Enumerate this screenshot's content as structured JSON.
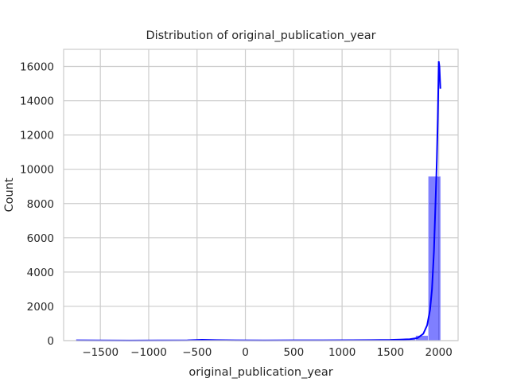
{
  "chart_data": {
    "type": "bar",
    "title": "Distribution of original_publication_year",
    "xlabel": "original_publication_year",
    "ylabel": "Count",
    "xlim": [
      -1880,
      2200
    ],
    "ylim": [
      0,
      17000
    ],
    "grid": true,
    "bar_color": "#0000ff",
    "bar_opacity": 0.5,
    "kde_color": "#0000ff",
    "x_ticks": [
      {
        "value": -1500,
        "label": "−1500"
      },
      {
        "value": -1000,
        "label": "−1000"
      },
      {
        "value": -500,
        "label": "−500"
      },
      {
        "value": 0,
        "label": "0"
      },
      {
        "value": 500,
        "label": "500"
      },
      {
        "value": 1000,
        "label": "1000"
      },
      {
        "value": 1500,
        "label": "1500"
      },
      {
        "value": 2000,
        "label": "2000"
      }
    ],
    "y_ticks": [
      {
        "value": 0,
        "label": "0"
      },
      {
        "value": 2000,
        "label": "2000"
      },
      {
        "value": 4000,
        "label": "4000"
      },
      {
        "value": 6000,
        "label": "6000"
      },
      {
        "value": 8000,
        "label": "8000"
      },
      {
        "value": 10000,
        "label": "10000"
      },
      {
        "value": 12000,
        "label": "12000"
      },
      {
        "value": 14000,
        "label": "14000"
      },
      {
        "value": 16000,
        "label": "16000"
      }
    ],
    "bins": [
      {
        "x0": -1750,
        "x1": -1620,
        "count": 5
      },
      {
        "x0": -1620,
        "x1": -1490,
        "count": 3
      },
      {
        "x0": -1490,
        "x1": -1360,
        "count": 2
      },
      {
        "x0": -1360,
        "x1": -1230,
        "count": 1
      },
      {
        "x0": -1230,
        "x1": -1100,
        "count": 2
      },
      {
        "x0": -1100,
        "x1": -970,
        "count": 2
      },
      {
        "x0": -970,
        "x1": -840,
        "count": 3
      },
      {
        "x0": -840,
        "x1": -710,
        "count": 5
      },
      {
        "x0": -710,
        "x1": -580,
        "count": 8
      },
      {
        "x0": -580,
        "x1": -450,
        "count": 12
      },
      {
        "x0": -450,
        "x1": -320,
        "count": 25
      },
      {
        "x0": -320,
        "x1": -190,
        "count": 10
      },
      {
        "x0": -190,
        "x1": -60,
        "count": 6
      },
      {
        "x0": -60,
        "x1": 70,
        "count": 4
      },
      {
        "x0": 70,
        "x1": 200,
        "count": 5
      },
      {
        "x0": 200,
        "x1": 330,
        "count": 4
      },
      {
        "x0": 330,
        "x1": 460,
        "count": 5
      },
      {
        "x0": 460,
        "x1": 590,
        "count": 6
      },
      {
        "x0": 590,
        "x1": 720,
        "count": 5
      },
      {
        "x0": 720,
        "x1": 850,
        "count": 6
      },
      {
        "x0": 850,
        "x1": 980,
        "count": 8
      },
      {
        "x0": 980,
        "x1": 1110,
        "count": 10
      },
      {
        "x0": 1110,
        "x1": 1240,
        "count": 12
      },
      {
        "x0": 1240,
        "x1": 1370,
        "count": 15
      },
      {
        "x0": 1370,
        "x1": 1500,
        "count": 20
      },
      {
        "x0": 1500,
        "x1": 1630,
        "count": 45
      },
      {
        "x0": 1630,
        "x1": 1760,
        "count": 90
      },
      {
        "x0": 1760,
        "x1": 1890,
        "count": 300
      },
      {
        "x0": 1890,
        "x1": 2020,
        "count": 9600
      }
    ],
    "kde": {
      "x": [
        -1750,
        -1500,
        -1200,
        -900,
        -600,
        -450,
        -300,
        -100,
        200,
        500,
        800,
        1100,
        1300,
        1500,
        1600,
        1700,
        1780,
        1840,
        1880,
        1910,
        1930,
        1950,
        1965,
        1980,
        1990,
        2000,
        2007,
        2012,
        2017
      ],
      "y": [
        15,
        10,
        8,
        12,
        20,
        45,
        30,
        15,
        12,
        15,
        20,
        25,
        30,
        40,
        60,
        80,
        150,
        400,
        900,
        1800,
        3000,
        5200,
        7800,
        10500,
        13000,
        16300,
        16000,
        15300,
        14700
      ]
    }
  }
}
